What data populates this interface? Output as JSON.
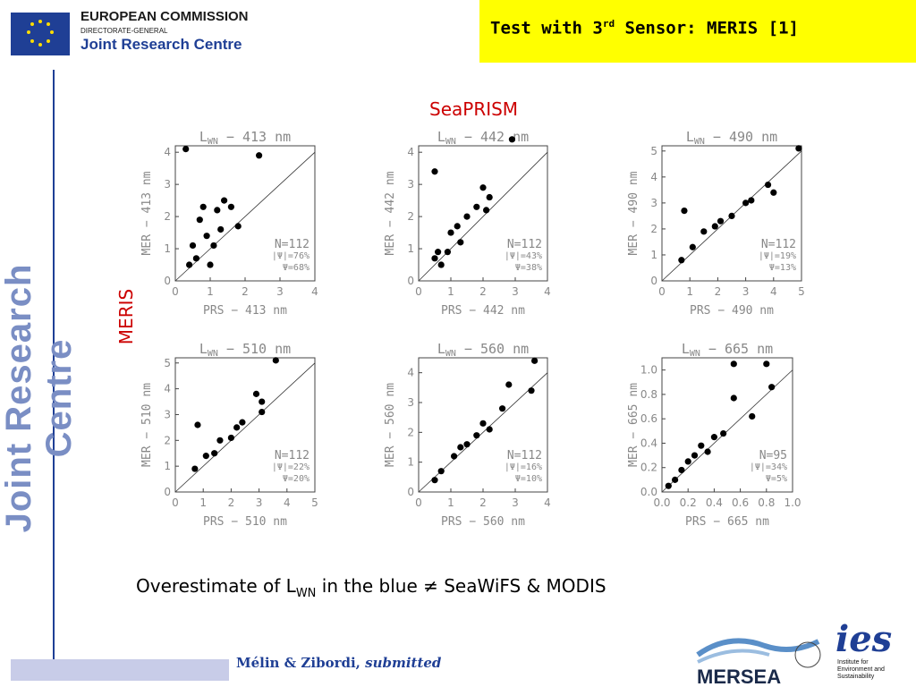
{
  "header": {
    "org_title": "EUROPEAN COMMISSION",
    "org_sub": "DIRECTORATE-GENERAL",
    "org_centre": "Joint Research Centre",
    "sidebar_text": "Joint Research Centre"
  },
  "slide": {
    "title_pre": "Test with 3",
    "title_sup": "rd",
    "title_post": " Sensor: MERIS [1]",
    "col_label": "SeaPRISM",
    "row_label": "MERIS",
    "conclusion_pre": "Overestimate of L",
    "conclusion_sub": "WN",
    "conclusion_post": " in the blue ≠ SeaWiFS & MODIS",
    "cite_authors": "Mélin & Zibordi, ",
    "cite_status": "submitted"
  },
  "logos": {
    "mersea": "MERSEA",
    "ies_text": "ies",
    "ies_caption": [
      "Institute for",
      "Environment and",
      "Sustainability"
    ]
  },
  "colors": {
    "title_bg": "#ffff00",
    "label_red": "#cc0000",
    "jrc_blue": "#1f3f95"
  },
  "chart_data": [
    {
      "type": "scatter",
      "title_pre": "L",
      "title_sub": "WN",
      "title_post": " − 413 nm",
      "xlabel": "PRS − 413 nm",
      "ylabel": "MER − 413 nm",
      "xlim": [
        0,
        4
      ],
      "ylim": [
        0,
        4.2
      ],
      "xticks": [
        "0",
        "1",
        "2",
        "3",
        "4"
      ],
      "yticks": [
        "0",
        "1",
        "2",
        "3",
        "4"
      ],
      "stats": [
        "N=112",
        "|Ψ|=76%",
        "Ψ=68%"
      ],
      "points": [
        [
          0.3,
          4.1
        ],
        [
          2.4,
          3.9
        ],
        [
          0.8,
          2.3
        ],
        [
          1.2,
          2.2
        ],
        [
          1.6,
          2.3
        ],
        [
          1.3,
          1.6
        ],
        [
          0.5,
          1.1
        ],
        [
          0.9,
          1.4
        ],
        [
          1.0,
          0.5
        ],
        [
          0.6,
          0.7
        ],
        [
          1.4,
          2.5
        ],
        [
          0.7,
          1.9
        ],
        [
          1.1,
          1.1
        ],
        [
          1.8,
          1.7
        ],
        [
          0.4,
          0.5
        ]
      ]
    },
    {
      "type": "scatter",
      "title_pre": "L",
      "title_sub": "WN",
      "title_post": " − 442 nm",
      "xlabel": "PRS − 442 nm",
      "ylabel": "MER − 442 nm",
      "xlim": [
        0,
        4
      ],
      "ylim": [
        0,
        4.2
      ],
      "xticks": [
        "0",
        "1",
        "2",
        "3",
        "4"
      ],
      "yticks": [
        "0",
        "1",
        "2",
        "3",
        "4"
      ],
      "stats": [
        "N=112",
        "|Ψ|=43%",
        "Ψ=38%"
      ],
      "points": [
        [
          0.5,
          3.4
        ],
        [
          2.9,
          4.4
        ],
        [
          2.0,
          2.9
        ],
        [
          2.1,
          2.2
        ],
        [
          1.5,
          2.0
        ],
        [
          1.0,
          1.5
        ],
        [
          0.6,
          0.9
        ],
        [
          0.7,
          0.5
        ],
        [
          1.3,
          1.2
        ],
        [
          0.9,
          0.9
        ],
        [
          1.8,
          2.3
        ],
        [
          0.5,
          0.7
        ],
        [
          1.2,
          1.7
        ],
        [
          2.2,
          2.6
        ]
      ]
    },
    {
      "type": "scatter",
      "title_pre": "L",
      "title_sub": "WN",
      "title_post": " − 490 nm",
      "xlabel": "PRS − 490 nm",
      "ylabel": "MER − 490 nm",
      "xlim": [
        0,
        5
      ],
      "ylim": [
        0,
        5.2
      ],
      "xticks": [
        "0",
        "1",
        "2",
        "3",
        "4",
        "5"
      ],
      "yticks": [
        "0",
        "1",
        "2",
        "3",
        "4",
        "5"
      ],
      "stats": [
        "N=112",
        "|Ψ|=19%",
        "Ψ=13%"
      ],
      "points": [
        [
          4.9,
          5.1
        ],
        [
          3.8,
          3.7
        ],
        [
          0.8,
          2.7
        ],
        [
          2.5,
          2.5
        ],
        [
          1.5,
          1.9
        ],
        [
          1.1,
          1.3
        ],
        [
          0.7,
          0.8
        ],
        [
          1.9,
          2.1
        ],
        [
          3.0,
          3.0
        ],
        [
          2.1,
          2.3
        ],
        [
          3.2,
          3.1
        ],
        [
          4.0,
          3.4
        ]
      ]
    },
    {
      "type": "scatter",
      "title_pre": "L",
      "title_sub": "WN",
      "title_post": " − 510 nm",
      "xlabel": "PRS − 510 nm",
      "ylabel": "MER − 510 nm",
      "xlim": [
        0,
        5
      ],
      "ylim": [
        0,
        5.2
      ],
      "xticks": [
        "0",
        "1",
        "2",
        "3",
        "4",
        "5"
      ],
      "yticks": [
        "0",
        "1",
        "2",
        "3",
        "4",
        "5"
      ],
      "stats": [
        "N=112",
        "|Ψ|=22%",
        "Ψ=20%"
      ],
      "points": [
        [
          3.6,
          5.1
        ],
        [
          2.9,
          3.8
        ],
        [
          3.1,
          3.5
        ],
        [
          3.1,
          3.1
        ],
        [
          0.8,
          2.6
        ],
        [
          2.4,
          2.7
        ],
        [
          1.6,
          2.0
        ],
        [
          1.1,
          1.4
        ],
        [
          0.7,
          0.9
        ],
        [
          2.0,
          2.1
        ],
        [
          1.4,
          1.5
        ],
        [
          2.2,
          2.5
        ]
      ]
    },
    {
      "type": "scatter",
      "title_pre": "L",
      "title_sub": "WN",
      "title_post": " − 560 nm",
      "xlabel": "PRS − 560 nm",
      "ylabel": "MER − 560 nm",
      "xlim": [
        0,
        4
      ],
      "ylim": [
        0,
        4.5
      ],
      "xticks": [
        "0",
        "1",
        "2",
        "3",
        "4"
      ],
      "yticks": [
        "0",
        "1",
        "2",
        "3",
        "4"
      ],
      "stats": [
        "N=112",
        "|Ψ|=16%",
        "Ψ=10%"
      ],
      "points": [
        [
          3.6,
          4.4
        ],
        [
          2.8,
          3.6
        ],
        [
          3.5,
          3.4
        ],
        [
          2.6,
          2.8
        ],
        [
          2.0,
          2.3
        ],
        [
          1.5,
          1.6
        ],
        [
          1.1,
          1.2
        ],
        [
          0.7,
          0.7
        ],
        [
          1.8,
          1.9
        ],
        [
          1.3,
          1.5
        ],
        [
          0.5,
          0.4
        ],
        [
          2.2,
          2.1
        ]
      ]
    },
    {
      "type": "scatter",
      "title_pre": "L",
      "title_sub": "WN",
      "title_post": " − 665 nm",
      "xlabel": "PRS − 665 nm",
      "ylabel": "MER − 665 nm",
      "xlim": [
        0,
        1.0
      ],
      "ylim": [
        0,
        1.1
      ],
      "xticks": [
        "0.0",
        "0.2",
        "0.4",
        "0.6",
        "0.8",
        "1.0"
      ],
      "yticks": [
        "0.0",
        "0.2",
        "0.4",
        "0.6",
        "0.8",
        "1.0"
      ],
      "stats": [
        "N=95",
        "|Ψ|=34%",
        "Ψ=5%"
      ],
      "points": [
        [
          0.55,
          1.05
        ],
        [
          0.8,
          1.05
        ],
        [
          0.55,
          0.77
        ],
        [
          0.84,
          0.86
        ],
        [
          0.69,
          0.62
        ],
        [
          0.47,
          0.48
        ],
        [
          0.4,
          0.45
        ],
        [
          0.3,
          0.38
        ],
        [
          0.2,
          0.25
        ],
        [
          0.15,
          0.18
        ],
        [
          0.1,
          0.1
        ],
        [
          0.05,
          0.05
        ],
        [
          0.25,
          0.3
        ],
        [
          0.35,
          0.33
        ]
      ]
    }
  ]
}
